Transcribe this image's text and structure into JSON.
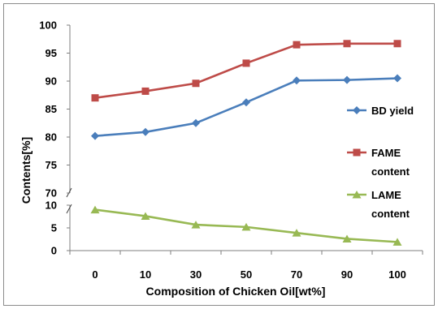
{
  "chart_data": {
    "type": "line",
    "title": "",
    "xlabel": "Composition of Chicken Oil[wt%]",
    "ylabel": "Contents[%]",
    "categories": [
      "0",
      "10",
      "30",
      "50",
      "70",
      "90",
      "100"
    ],
    "upper_axis": {
      "range": [
        70,
        100
      ],
      "ticks": [
        "100",
        "95",
        "90",
        "85",
        "80",
        "75",
        "70"
      ]
    },
    "lower_axis": {
      "range": [
        0,
        10
      ],
      "ticks": [
        "10",
        "5",
        "0"
      ]
    },
    "axis_break": true,
    "grid": false,
    "legend_position": "right",
    "series": [
      {
        "name": "BD yield",
        "panel": "upper",
        "color": "#4a7ebb",
        "marker": "diamond",
        "values": [
          80.2,
          80.9,
          82.5,
          86.2,
          90.1,
          90.2,
          90.5
        ]
      },
      {
        "name": "FAME content",
        "panel": "upper",
        "color": "#be4b48",
        "marker": "square",
        "values": [
          87.0,
          88.2,
          89.6,
          93.2,
          96.5,
          96.7,
          96.7
        ]
      },
      {
        "name": "LAME content",
        "panel": "lower",
        "color": "#98b954",
        "marker": "triangle",
        "values": [
          9.0,
          7.6,
          5.7,
          5.2,
          3.9,
          2.6,
          1.9
        ]
      }
    ],
    "legend": [
      {
        "series": 0,
        "lines": [
          "BD yield"
        ]
      },
      {
        "series": 1,
        "lines": [
          "FAME",
          "content"
        ]
      },
      {
        "series": 2,
        "lines": [
          "LAME",
          "content"
        ]
      }
    ]
  }
}
